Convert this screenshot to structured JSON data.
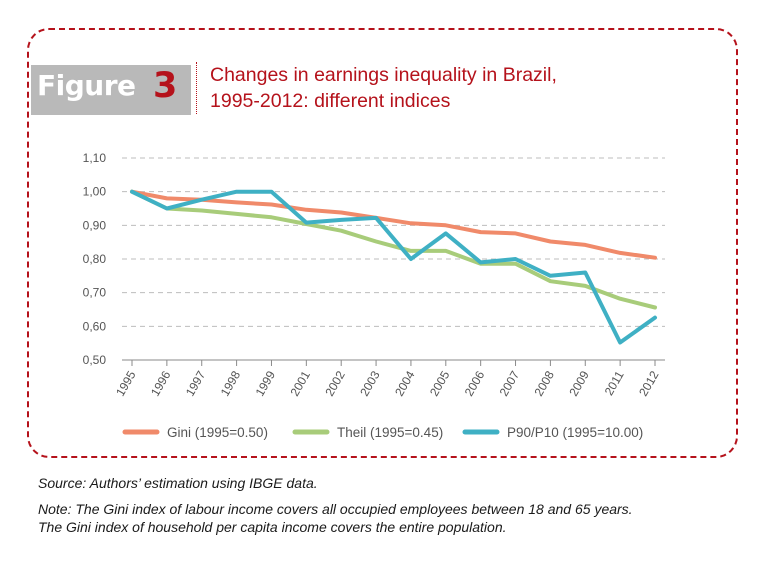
{
  "figure_label": {
    "word": "Figure",
    "number": "3"
  },
  "title": {
    "line1": "Changes in earnings inequality in Brazil,",
    "line2": "1995-2012: different indices"
  },
  "source": "Source: Authors’ estimation using IBGE data.",
  "note": {
    "line1": "Note: The Gini index of labour income covers all occupied employees between 18 and 65 years.",
    "line2": "The Gini index of household per capita income covers the entire population."
  },
  "colors": {
    "accent": "#b5121b",
    "gini": "#f08a6a",
    "theil": "#a8cc7a",
    "p90p10": "#3fb0c4",
    "grid": "#bdbdbd"
  },
  "chart_data": {
    "type": "line",
    "categories": [
      "1995",
      "1996",
      "1997",
      "1998",
      "1999",
      "2001",
      "2002",
      "2003",
      "2004",
      "2005",
      "2006",
      "2007",
      "2008",
      "2009",
      "2011",
      "2012"
    ],
    "y_tick_labels": [
      "0,50",
      "0,60",
      "0,70",
      "0,80",
      "0,90",
      "1,00",
      "1,10"
    ],
    "y_ticks": [
      0.5,
      0.6,
      0.7,
      0.8,
      0.9,
      1.0,
      1.1
    ],
    "ylim": [
      0.5,
      1.1
    ],
    "grid": "horizontal dashed",
    "legend_position": "bottom",
    "series": [
      {
        "name": "Gini (1995=0.50)",
        "color": "#f08a6a",
        "values": [
          1.0,
          0.98,
          0.976,
          0.968,
          0.962,
          0.946,
          0.938,
          0.922,
          0.906,
          0.9,
          0.88,
          0.876,
          0.852,
          0.842,
          0.818,
          0.804
        ]
      },
      {
        "name": "Theil (1995=0.45)",
        "color": "#a8cc7a",
        "values": [
          1.0,
          0.95,
          0.944,
          0.934,
          0.924,
          0.904,
          0.884,
          0.852,
          0.824,
          0.824,
          0.786,
          0.786,
          0.734,
          0.72,
          0.682,
          0.656
        ]
      },
      {
        "name": "P90/P10 (1995=10.00)",
        "color": "#3fb0c4",
        "values": [
          1.0,
          0.95,
          0.976,
          1.0,
          1.0,
          0.908,
          0.916,
          0.922,
          0.8,
          0.876,
          0.79,
          0.8,
          0.75,
          0.76,
          0.552,
          0.626
        ]
      }
    ]
  }
}
